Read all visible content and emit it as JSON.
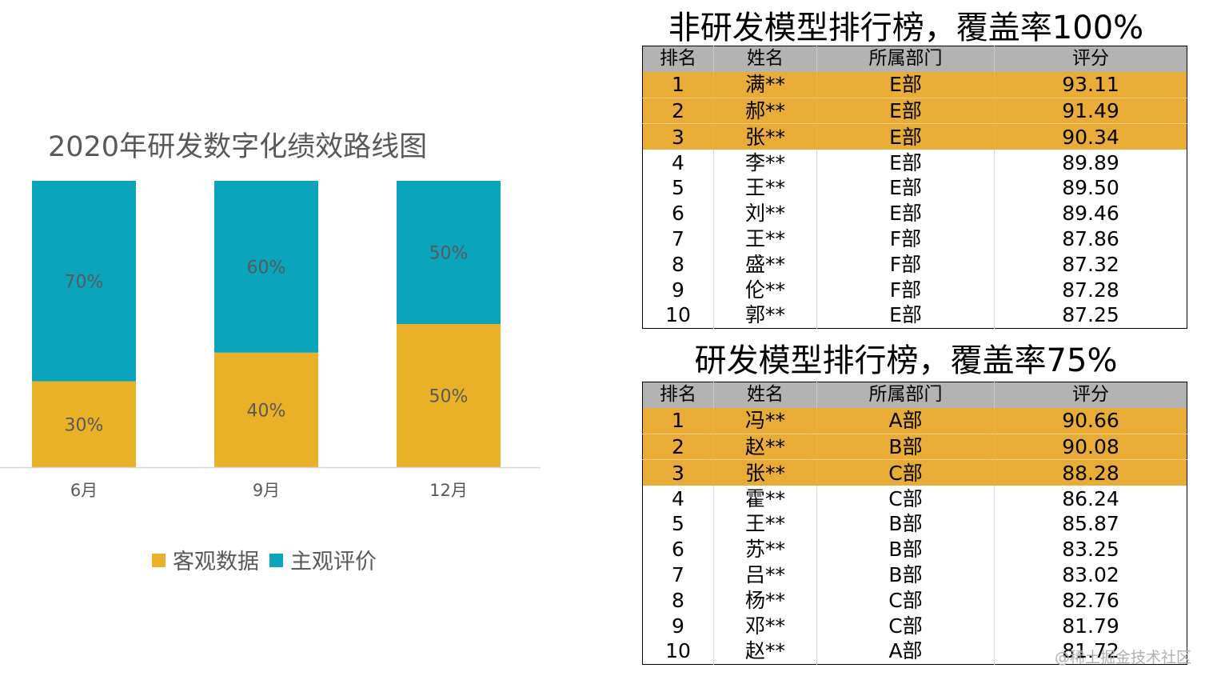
{
  "chart_data": {
    "type": "bar",
    "stacked": true,
    "title": "2020年研发数字化绩效路线图",
    "categories": [
      "6月",
      "9月",
      "12月"
    ],
    "series": [
      {
        "name": "客观数据",
        "color": "#e9b028",
        "values": [
          30,
          40,
          50
        ],
        "labels": [
          "30%",
          "40%",
          "50%"
        ]
      },
      {
        "name": "主观评价",
        "color": "#0aa5bd",
        "values": [
          70,
          60,
          50
        ],
        "labels": [
          "70%",
          "60%",
          "50%"
        ]
      }
    ],
    "ylim": [
      0,
      100
    ],
    "grid": false,
    "legend_position": "bottom"
  },
  "tables": [
    {
      "title": "非研发模型排行榜，覆盖率100%",
      "headers": [
        "排名",
        "姓名",
        "所属部门",
        "评分"
      ],
      "highlight_color": "#e9ad37",
      "rows": [
        [
          "1",
          "满**",
          "E部",
          "93.11"
        ],
        [
          "2",
          "郝**",
          "E部",
          "91.49"
        ],
        [
          "3",
          "张**",
          "E部",
          "90.34"
        ],
        [
          "4",
          "李**",
          "E部",
          "89.89"
        ],
        [
          "5",
          "王**",
          "E部",
          "89.50"
        ],
        [
          "6",
          "刘**",
          "E部",
          "89.46"
        ],
        [
          "7",
          "王**",
          "F部",
          "87.86"
        ],
        [
          "8",
          "盛**",
          "F部",
          "87.32"
        ],
        [
          "9",
          "伦**",
          "F部",
          "87.28"
        ],
        [
          "10",
          "郭**",
          "E部",
          "87.25"
        ]
      ]
    },
    {
      "title": "研发模型排行榜，覆盖率75%",
      "headers": [
        "排名",
        "姓名",
        "所属部门",
        "评分"
      ],
      "highlight_color": "#e9ad37",
      "rows": [
        [
          "1",
          "冯**",
          "A部",
          "90.66"
        ],
        [
          "2",
          "赵**",
          "B部",
          "90.08"
        ],
        [
          "3",
          "张**",
          "C部",
          "88.28"
        ],
        [
          "4",
          "霍**",
          "C部",
          "86.24"
        ],
        [
          "5",
          "王**",
          "B部",
          "85.87"
        ],
        [
          "6",
          "苏**",
          "B部",
          "83.25"
        ],
        [
          "7",
          "吕**",
          "B部",
          "83.02"
        ],
        [
          "8",
          "杨**",
          "C部",
          "82.76"
        ],
        [
          "9",
          "邓**",
          "C部",
          "81.79"
        ],
        [
          "10",
          "赵**",
          "A部",
          "81.72"
        ]
      ]
    }
  ],
  "watermark": "@稀土掘金技术社区"
}
